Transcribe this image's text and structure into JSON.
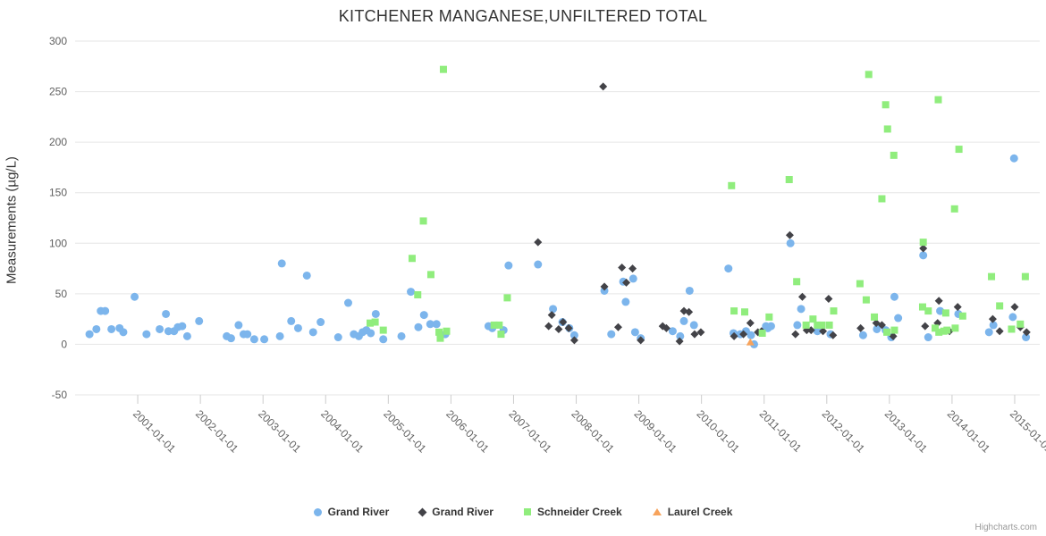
{
  "credit": "Highcharts.com",
  "colors": {
    "grand_river_1": "#7cb5ec",
    "grand_river_2": "#434348",
    "schneider_creek": "#90ed7d",
    "laurel_creek": "#f7a35c",
    "gridline": "#e6e6e6",
    "tick": "#cccccc",
    "axis_label": "#606060",
    "title_text": "#333333",
    "credit_text": "#999999"
  },
  "chart_data": {
    "type": "scatter",
    "title": "KITCHENER MANGANESE,UNFILTERED TOTAL",
    "xlabel": "",
    "ylabel": "Measurements (µg/L)",
    "ylim": [
      -50,
      300
    ],
    "y_ticks": [
      300,
      250,
      200,
      150,
      100,
      50,
      0,
      -50
    ],
    "xlim": [
      2000.0,
      2015.4
    ],
    "x_ticks": [
      2001,
      2002,
      2003,
      2004,
      2005,
      2006,
      2007,
      2008,
      2009,
      2010,
      2011,
      2012,
      2013,
      2014,
      2015
    ],
    "x_tick_labels": [
      "2001-01-01",
      "2002-01-01",
      "2003-01-01",
      "2004-01-01",
      "2005-01-01",
      "2006-01-01",
      "2007-01-01",
      "2008-01-01",
      "2009-01-01",
      "2010-01-01",
      "2011-01-01",
      "2012-01-01",
      "2013-01-01",
      "2014-01-01",
      "2015-01-01"
    ],
    "grid": "horizontal",
    "legend_position": "bottom",
    "series": [
      {
        "name": "Grand River",
        "marker": "circle",
        "color": "#7cb5ec",
        "points": [
          [
            2000.23,
            10
          ],
          [
            2000.34,
            15
          ],
          [
            2000.41,
            33
          ],
          [
            2000.48,
            33
          ],
          [
            2000.58,
            15
          ],
          [
            2000.71,
            16
          ],
          [
            2000.77,
            12
          ],
          [
            2000.95,
            47
          ],
          [
            2001.14,
            10
          ],
          [
            2001.35,
            15
          ],
          [
            2001.45,
            30
          ],
          [
            2001.49,
            13
          ],
          [
            2001.58,
            13
          ],
          [
            2001.64,
            17
          ],
          [
            2001.71,
            18
          ],
          [
            2001.79,
            8
          ],
          [
            2001.98,
            23
          ],
          [
            2002.42,
            8
          ],
          [
            2002.49,
            6
          ],
          [
            2002.61,
            19
          ],
          [
            2002.69,
            10
          ],
          [
            2002.75,
            10
          ],
          [
            2002.86,
            5
          ],
          [
            2003.02,
            5
          ],
          [
            2003.27,
            8
          ],
          [
            2003.3,
            80
          ],
          [
            2003.45,
            23
          ],
          [
            2003.56,
            16
          ],
          [
            2003.7,
            68
          ],
          [
            2003.8,
            12
          ],
          [
            2003.92,
            22
          ],
          [
            2004.2,
            7
          ],
          [
            2004.36,
            41
          ],
          [
            2004.45,
            10
          ],
          [
            2004.53,
            8
          ],
          [
            2004.59,
            12
          ],
          [
            2004.65,
            14
          ],
          [
            2004.72,
            11
          ],
          [
            2004.8,
            30
          ],
          [
            2004.92,
            5
          ],
          [
            2005.21,
            8
          ],
          [
            2005.36,
            52
          ],
          [
            2005.48,
            17
          ],
          [
            2005.57,
            29
          ],
          [
            2005.67,
            20
          ],
          [
            2005.77,
            20
          ],
          [
            2005.91,
            10
          ],
          [
            2006.6,
            18
          ],
          [
            2006.66,
            16
          ],
          [
            2006.84,
            14
          ],
          [
            2006.92,
            78
          ],
          [
            2007.39,
            79
          ],
          [
            2007.63,
            35
          ],
          [
            2007.78,
            22
          ],
          [
            2007.89,
            16
          ],
          [
            2007.97,
            9
          ],
          [
            2008.45,
            53
          ],
          [
            2008.56,
            10
          ],
          [
            2008.75,
            62
          ],
          [
            2008.79,
            42
          ],
          [
            2008.91,
            65
          ],
          [
            2008.94,
            12
          ],
          [
            2009.03,
            6
          ],
          [
            2009.54,
            13
          ],
          [
            2009.66,
            8
          ],
          [
            2009.72,
            23
          ],
          [
            2009.81,
            53
          ],
          [
            2009.88,
            19
          ],
          [
            2010.43,
            75
          ],
          [
            2010.51,
            11
          ],
          [
            2010.62,
            10
          ],
          [
            2010.71,
            13
          ],
          [
            2010.79,
            9
          ],
          [
            2010.84,
            0
          ],
          [
            2011.03,
            18
          ],
          [
            2011.06,
            16
          ],
          [
            2011.11,
            18
          ],
          [
            2011.42,
            100
          ],
          [
            2011.53,
            19
          ],
          [
            2011.59,
            35
          ],
          [
            2011.85,
            13
          ],
          [
            2012.06,
            10
          ],
          [
            2012.58,
            9
          ],
          [
            2012.8,
            15
          ],
          [
            2012.94,
            14
          ],
          [
            2013.03,
            7
          ],
          [
            2013.08,
            47
          ],
          [
            2013.14,
            26
          ],
          [
            2013.54,
            88
          ],
          [
            2013.62,
            7
          ],
          [
            2013.81,
            33
          ],
          [
            2014.1,
            30
          ],
          [
            2014.59,
            12
          ],
          [
            2014.66,
            19
          ],
          [
            2014.97,
            27
          ],
          [
            2014.99,
            184
          ],
          [
            2015.18,
            7
          ]
        ]
      },
      {
        "name": "Grand River",
        "marker": "diamond",
        "color": "#434348",
        "points": [
          [
            2007.39,
            101
          ],
          [
            2007.56,
            18
          ],
          [
            2007.61,
            29
          ],
          [
            2007.72,
            15
          ],
          [
            2007.79,
            22
          ],
          [
            2007.88,
            16
          ],
          [
            2007.97,
            4
          ],
          [
            2008.43,
            255
          ],
          [
            2008.45,
            57
          ],
          [
            2008.67,
            17
          ],
          [
            2008.73,
            76
          ],
          [
            2008.8,
            61
          ],
          [
            2008.9,
            75
          ],
          [
            2009.03,
            4
          ],
          [
            2009.38,
            18
          ],
          [
            2009.44,
            16
          ],
          [
            2009.65,
            3
          ],
          [
            2009.72,
            33
          ],
          [
            2009.8,
            32
          ],
          [
            2009.89,
            10
          ],
          [
            2009.99,
            12
          ],
          [
            2010.52,
            8
          ],
          [
            2010.67,
            10
          ],
          [
            2010.78,
            21
          ],
          [
            2010.9,
            12
          ],
          [
            2010.96,
            13
          ],
          [
            2011.41,
            108
          ],
          [
            2011.5,
            10
          ],
          [
            2011.61,
            47
          ],
          [
            2011.68,
            14
          ],
          [
            2011.75,
            14
          ],
          [
            2011.94,
            13
          ],
          [
            2012.03,
            45
          ],
          [
            2012.1,
            9
          ],
          [
            2012.54,
            16
          ],
          [
            2012.79,
            21
          ],
          [
            2012.88,
            19
          ],
          [
            2013.06,
            8
          ],
          [
            2013.54,
            95
          ],
          [
            2013.57,
            18
          ],
          [
            2013.77,
            21
          ],
          [
            2013.79,
            43
          ],
          [
            2013.96,
            13
          ],
          [
            2014.09,
            37
          ],
          [
            2014.65,
            25
          ],
          [
            2014.76,
            13
          ],
          [
            2015.0,
            37
          ],
          [
            2015.09,
            17
          ],
          [
            2015.19,
            12
          ]
        ]
      },
      {
        "name": "Schneider Creek",
        "marker": "square",
        "color": "#90ed7d",
        "points": [
          [
            2004.71,
            21
          ],
          [
            2004.79,
            22
          ],
          [
            2004.92,
            14
          ],
          [
            2005.38,
            85
          ],
          [
            2005.47,
            49
          ],
          [
            2005.56,
            122
          ],
          [
            2005.68,
            69
          ],
          [
            2005.81,
            12
          ],
          [
            2005.83,
            6
          ],
          [
            2005.88,
            272
          ],
          [
            2005.93,
            13
          ],
          [
            2006.69,
            19
          ],
          [
            2006.77,
            19
          ],
          [
            2006.8,
            10
          ],
          [
            2006.9,
            46
          ],
          [
            2010.48,
            157
          ],
          [
            2010.52,
            33
          ],
          [
            2010.69,
            32
          ],
          [
            2010.97,
            11
          ],
          [
            2011.08,
            27
          ],
          [
            2011.4,
            163
          ],
          [
            2011.52,
            62
          ],
          [
            2011.67,
            19
          ],
          [
            2011.78,
            25
          ],
          [
            2011.85,
            19
          ],
          [
            2011.92,
            19
          ],
          [
            2012.04,
            19
          ],
          [
            2012.11,
            33
          ],
          [
            2012.53,
            60
          ],
          [
            2012.63,
            44
          ],
          [
            2012.67,
            267
          ],
          [
            2012.76,
            27
          ],
          [
            2012.88,
            144
          ],
          [
            2012.94,
            237
          ],
          [
            2012.96,
            12
          ],
          [
            2012.97,
            213
          ],
          [
            2013.07,
            187
          ],
          [
            2013.08,
            14
          ],
          [
            2013.53,
            37
          ],
          [
            2013.54,
            101
          ],
          [
            2013.62,
            33
          ],
          [
            2013.73,
            16
          ],
          [
            2013.78,
            242
          ],
          [
            2013.79,
            12
          ],
          [
            2013.87,
            13
          ],
          [
            2013.9,
            31
          ],
          [
            2013.92,
            14
          ],
          [
            2014.04,
            134
          ],
          [
            2014.05,
            16
          ],
          [
            2014.11,
            193
          ],
          [
            2014.17,
            28
          ],
          [
            2014.63,
            67
          ],
          [
            2014.76,
            38
          ],
          [
            2014.95,
            15
          ],
          [
            2015.09,
            20
          ],
          [
            2015.17,
            67
          ]
        ]
      },
      {
        "name": "Laurel Creek",
        "marker": "triangle",
        "color": "#f7a35c",
        "points": [
          [
            2010.78,
            2
          ]
        ]
      }
    ]
  }
}
